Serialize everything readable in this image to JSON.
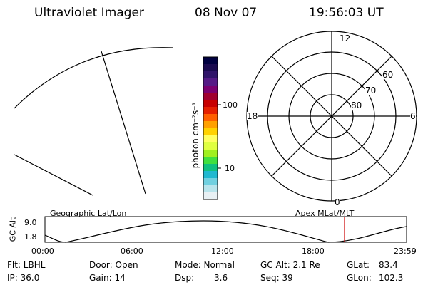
{
  "header": {
    "title": "Ultraviolet Imager",
    "date": "08 Nov 07",
    "time": "19:56:03 UT"
  },
  "colorbar": {
    "unit_label": "photon cm⁻²s⁻¹",
    "tick_labels": [
      "100",
      "10"
    ],
    "colors": [
      "#000040",
      "#1a0a50",
      "#30146a",
      "#551a86",
      "#7a0070",
      "#a00030",
      "#c80000",
      "#e52000",
      "#ff6000",
      "#ffa000",
      "#ffd200",
      "#ffff60",
      "#e0ff40",
      "#a0f020",
      "#40e040",
      "#10c080",
      "#20b8d0",
      "#70d0e0",
      "#b8e4ec",
      "#e8f0f4"
    ]
  },
  "polar": {
    "mlt_labels": {
      "top": "12",
      "left": "18",
      "right": "6",
      "bottom": "0"
    },
    "lat_labels": [
      "60",
      "70",
      "80"
    ]
  },
  "altitude_plot": {
    "ylabel": "GC Alt",
    "yticks": [
      "9.0",
      "1.8"
    ],
    "left_title": "Geographic Lat/Lon",
    "right_title": "Apex MLat/MLT",
    "xticks": [
      "00:00",
      "06:00",
      "12:00",
      "18:00",
      "23:59"
    ],
    "marker_color": "#cc0000"
  },
  "info": {
    "row1": {
      "flt": "Flt: LBHL",
      "door": "Door: Open",
      "mode": "Mode: Normal",
      "gcalt": "GC Alt: 2.1 Re",
      "glat_label": "GLat:",
      "glat_value": "83.4"
    },
    "row2": {
      "ip": "IP: 36.0",
      "gain": "Gain: 14",
      "dsp_label": "Dsp:",
      "dsp_value": "3.6",
      "seq": "Seq: 39",
      "glon_label": "GLon:",
      "glon_value": "102.3"
    }
  }
}
